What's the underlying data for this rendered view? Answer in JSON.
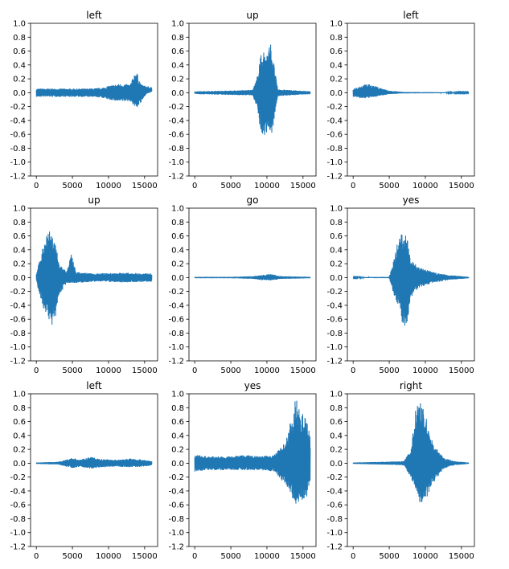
{
  "chart_data": [
    {
      "type": "line",
      "title": "left",
      "xlim": [
        -800,
        16800
      ],
      "ylim": [
        -1.2,
        1.0
      ],
      "color": "#1f77b4",
      "xticks": [
        0,
        5000,
        10000,
        15000
      ],
      "yticks": [
        1.0,
        0.8,
        0.6,
        0.4,
        0.2,
        0.0,
        -0.2,
        -0.4,
        -0.6,
        -0.8,
        -1.0,
        -1.2
      ],
      "envelope": [
        [
          0,
          0.06,
          -0.06
        ],
        [
          1000,
          0.06,
          -0.06
        ],
        [
          3000,
          0.06,
          -0.06
        ],
        [
          5000,
          0.06,
          -0.06
        ],
        [
          7000,
          0.06,
          -0.06
        ],
        [
          9000,
          0.07,
          -0.07
        ],
        [
          10000,
          0.1,
          -0.1
        ],
        [
          11500,
          0.13,
          -0.13
        ],
        [
          13000,
          0.12,
          -0.12
        ],
        [
          13800,
          0.33,
          -0.23
        ],
        [
          14500,
          0.12,
          -0.15
        ],
        [
          15200,
          0.1,
          -0.02
        ],
        [
          16000,
          0.08,
          0.02
        ]
      ]
    },
    {
      "type": "line",
      "title": "up",
      "xlim": [
        -800,
        16800
      ],
      "ylim": [
        -1.2,
        1.0
      ],
      "color": "#1f77b4",
      "xticks": [
        0,
        5000,
        10000,
        15000
      ],
      "yticks": [
        1.0,
        0.8,
        0.6,
        0.4,
        0.2,
        0.0,
        -0.2,
        -0.4,
        -0.6,
        -0.8,
        -1.0,
        -1.2
      ],
      "envelope": [
        [
          0,
          0.02,
          -0.02
        ],
        [
          4000,
          0.03,
          -0.03
        ],
        [
          8000,
          0.04,
          -0.04
        ],
        [
          8600,
          0.2,
          -0.2
        ],
        [
          9000,
          0.5,
          -0.5
        ],
        [
          9500,
          0.62,
          -0.62
        ],
        [
          10000,
          0.58,
          -0.6
        ],
        [
          10500,
          0.73,
          -0.68
        ],
        [
          11000,
          0.4,
          -0.4
        ],
        [
          11500,
          0.05,
          -0.05
        ],
        [
          16000,
          0.02,
          -0.02
        ]
      ]
    },
    {
      "type": "line",
      "title": "left",
      "xlim": [
        -800,
        16800
      ],
      "ylim": [
        -1.2,
        1.0
      ],
      "color": "#1f77b4",
      "xticks": [
        0,
        5000,
        10000,
        15000
      ],
      "yticks": [
        1.0,
        0.8,
        0.6,
        0.4,
        0.2,
        0.0,
        -0.2,
        -0.4,
        -0.6,
        -0.8,
        -1.0,
        -1.2
      ],
      "envelope": [
        [
          0,
          0.06,
          -0.06
        ],
        [
          1000,
          0.1,
          -0.08
        ],
        [
          2000,
          0.13,
          -0.08
        ],
        [
          3500,
          0.08,
          -0.05
        ],
        [
          5000,
          0.03,
          -0.02
        ],
        [
          7000,
          0.01,
          -0.01
        ],
        [
          16000,
          0.005,
          -0.005
        ]
      ]
    },
    {
      "type": "line",
      "title": "up",
      "xlim": [
        -800,
        16800
      ],
      "ylim": [
        -1.2,
        1.0
      ],
      "color": "#1f77b4",
      "xticks": [
        0,
        5000,
        10000,
        15000
      ],
      "yticks": [
        1.0,
        0.8,
        0.6,
        0.4,
        0.2,
        0.0,
        -0.2,
        -0.4,
        -0.6,
        -0.8,
        -1.0,
        -1.2
      ],
      "envelope": [
        [
          0,
          0.05,
          -0.05
        ],
        [
          800,
          0.4,
          -0.4
        ],
        [
          1600,
          0.75,
          -0.6
        ],
        [
          2400,
          0.6,
          -0.72
        ],
        [
          3200,
          0.2,
          -0.25
        ],
        [
          4200,
          0.08,
          -0.08
        ],
        [
          4800,
          0.35,
          -0.08
        ],
        [
          5500,
          0.08,
          -0.08
        ],
        [
          8000,
          0.06,
          -0.06
        ],
        [
          12000,
          0.07,
          -0.07
        ],
        [
          16000,
          0.06,
          -0.06
        ]
      ]
    },
    {
      "type": "line",
      "title": "go",
      "xlim": [
        -800,
        16800
      ],
      "ylim": [
        -1.2,
        1.0
      ],
      "color": "#1f77b4",
      "xticks": [
        0,
        5000,
        10000,
        15000
      ],
      "yticks": [
        1.0,
        0.8,
        0.6,
        0.4,
        0.2,
        0.0,
        -0.2,
        -0.4,
        -0.6,
        -0.8,
        -1.0,
        -1.2
      ],
      "envelope": [
        [
          0,
          0.01,
          -0.01
        ],
        [
          5000,
          0.01,
          -0.01
        ],
        [
          8000,
          0.02,
          -0.02
        ],
        [
          9500,
          0.04,
          -0.04
        ],
        [
          10500,
          0.05,
          -0.04
        ],
        [
          12000,
          0.02,
          -0.02
        ],
        [
          16000,
          0.01,
          -0.01
        ]
      ]
    },
    {
      "type": "line",
      "title": "yes",
      "xlim": [
        -800,
        16800
      ],
      "ylim": [
        -1.2,
        1.0
      ],
      "color": "#1f77b4",
      "xticks": [
        0,
        5000,
        10000,
        15000
      ],
      "yticks": [
        1.0,
        0.8,
        0.6,
        0.4,
        0.2,
        0.0,
        -0.2,
        -0.4,
        -0.6,
        -0.8,
        -1.0,
        -1.2
      ],
      "envelope": [
        [
          0,
          0.005,
          -0.005
        ],
        [
          5000,
          0.01,
          -0.01
        ],
        [
          5500,
          0.2,
          -0.2
        ],
        [
          6200,
          0.55,
          -0.4
        ],
        [
          6800,
          0.66,
          -0.66
        ],
        [
          7400,
          0.6,
          -0.72
        ],
        [
          8000,
          0.3,
          -0.3
        ],
        [
          9000,
          0.15,
          -0.15
        ],
        [
          11000,
          0.08,
          -0.08
        ],
        [
          13000,
          0.04,
          -0.04
        ],
        [
          15000,
          0.02,
          -0.02
        ],
        [
          16000,
          0.01,
          -0.01
        ]
      ]
    },
    {
      "type": "line",
      "title": "left",
      "xlim": [
        -800,
        16800
      ],
      "ylim": [
        -1.2,
        1.0
      ],
      "color": "#1f77b4",
      "xticks": [
        0,
        5000,
        10000,
        15000
      ],
      "yticks": [
        1.0,
        0.8,
        0.6,
        0.4,
        0.2,
        0.0,
        -0.2,
        -0.4,
        -0.6,
        -0.8,
        -1.0,
        -1.2
      ],
      "envelope": [
        [
          0,
          0.01,
          -0.01
        ],
        [
          3000,
          0.02,
          -0.02
        ],
        [
          5000,
          0.08,
          -0.07
        ],
        [
          6000,
          0.05,
          -0.05
        ],
        [
          7500,
          0.09,
          -0.08
        ],
        [
          9000,
          0.06,
          -0.06
        ],
        [
          11000,
          0.05,
          -0.05
        ],
        [
          13000,
          0.07,
          -0.06
        ],
        [
          15000,
          0.05,
          -0.05
        ],
        [
          16000,
          0.03,
          -0.03
        ]
      ]
    },
    {
      "type": "line",
      "title": "yes",
      "xlim": [
        -800,
        16800
      ],
      "ylim": [
        -1.2,
        1.0
      ],
      "color": "#1f77b4",
      "xticks": [
        0,
        5000,
        10000,
        15000
      ],
      "yticks": [
        1.0,
        0.8,
        0.6,
        0.4,
        0.2,
        0.0,
        -0.2,
        -0.4,
        -0.6,
        -0.8,
        -1.0,
        -1.2
      ],
      "envelope": [
        [
          0,
          0.12,
          -0.12
        ],
        [
          2000,
          0.1,
          -0.1
        ],
        [
          5000,
          0.1,
          -0.1
        ],
        [
          7000,
          0.12,
          -0.1
        ],
        [
          9000,
          0.1,
          -0.1
        ],
        [
          11000,
          0.12,
          -0.12
        ],
        [
          12500,
          0.3,
          -0.3
        ],
        [
          13500,
          0.7,
          -0.5
        ],
        [
          14000,
          0.95,
          -0.6
        ],
        [
          14800,
          0.75,
          -0.55
        ],
        [
          15600,
          0.6,
          -0.5
        ],
        [
          16000,
          0.4,
          -0.3
        ]
      ]
    },
    {
      "type": "line",
      "title": "right",
      "xlim": [
        -800,
        16800
      ],
      "ylim": [
        -1.2,
        1.0
      ],
      "color": "#1f77b4",
      "xticks": [
        0,
        5000,
        10000,
        15000
      ],
      "yticks": [
        1.0,
        0.8,
        0.6,
        0.4,
        0.2,
        0.0,
        -0.2,
        -0.4,
        -0.6,
        -0.8,
        -1.0,
        -1.2
      ],
      "envelope": [
        [
          0,
          0.01,
          -0.01
        ],
        [
          4000,
          0.02,
          -0.02
        ],
        [
          7000,
          0.03,
          -0.03
        ],
        [
          8000,
          0.2,
          -0.2
        ],
        [
          8800,
          0.9,
          -0.45
        ],
        [
          9500,
          0.85,
          -0.65
        ],
        [
          10000,
          0.7,
          -0.55
        ],
        [
          11000,
          0.3,
          -0.3
        ],
        [
          12500,
          0.08,
          -0.08
        ],
        [
          14000,
          0.03,
          -0.03
        ],
        [
          16000,
          0.01,
          -0.01
        ]
      ]
    }
  ]
}
